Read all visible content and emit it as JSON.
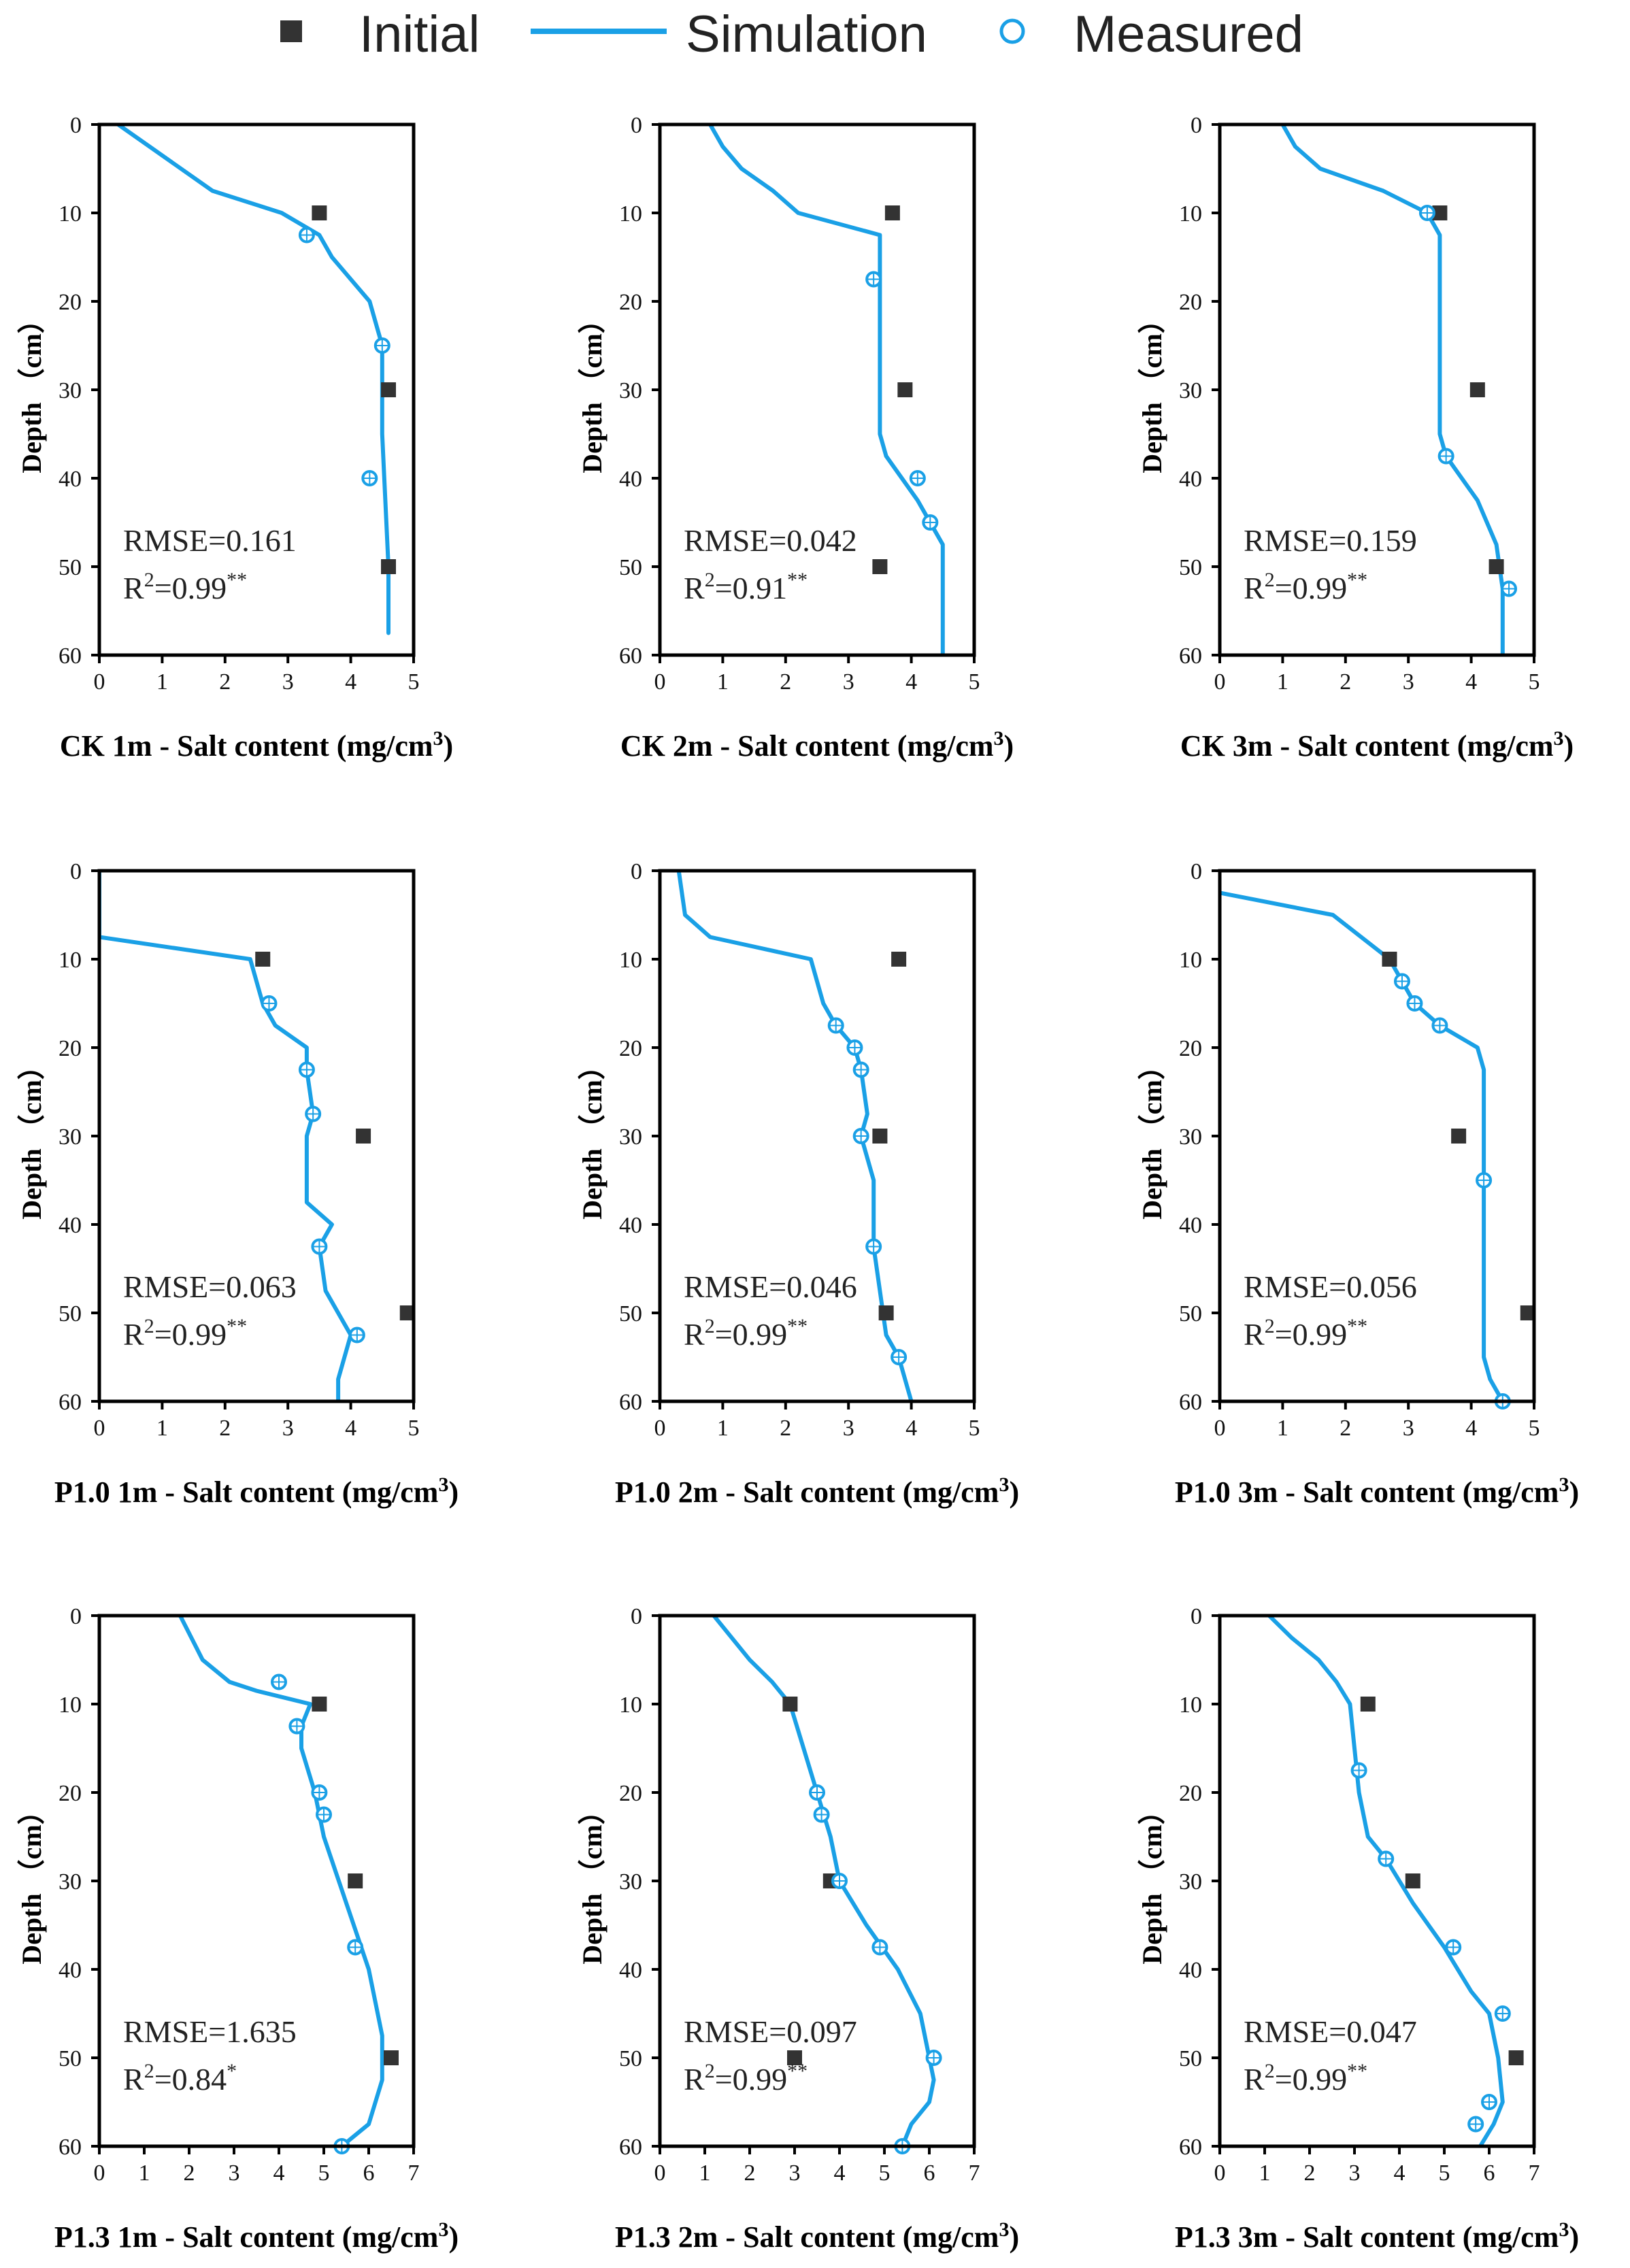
{
  "legend": {
    "initial": "Initial",
    "simulation": "Simulation",
    "measured": "Measured"
  },
  "colors": {
    "simulation": "#1aa0e6",
    "measured": "#1aa0e6",
    "initial": "#333333",
    "axis": "#000000"
  },
  "chart_data": [
    {
      "type": "line",
      "panel": "CK 1m",
      "xlabel": "CK 1m - Salt content (mg/cm",
      "xlabel_sup": "3",
      "xlabel_end": ")",
      "ylabel": "Depth （cm）",
      "xlim": [
        0,
        5
      ],
      "xticks": [
        0,
        1,
        2,
        3,
        4,
        5
      ],
      "ylim": [
        0,
        60
      ],
      "yticks": [
        0,
        10,
        20,
        30,
        40,
        50,
        60
      ],
      "rmse": "RMSE=0.161",
      "r2": "R",
      "r2_sup1": "2",
      "r2_val": "=0.99",
      "r2_sup2": "**",
      "simulation": {
        "x": [
          0.3,
          0.8,
          1.8,
          2.9,
          3.5,
          3.7,
          4.3,
          4.5,
          4.5,
          4.6,
          4.6
        ],
        "y": [
          0,
          2.5,
          7.5,
          10,
          12.5,
          15,
          20,
          25,
          35,
          50,
          57.5
        ]
      },
      "measured": {
        "x": [
          3.3,
          4.5,
          4.3
        ],
        "y": [
          12.5,
          25,
          40
        ]
      },
      "initial": {
        "x": [
          3.5,
          4.6,
          4.6
        ],
        "y": [
          10,
          30,
          50
        ]
      }
    },
    {
      "type": "line",
      "panel": "CK 2m",
      "xlabel": "CK 2m - Salt content (mg/cm",
      "xlabel_sup": "3",
      "xlabel_end": ")",
      "ylabel": "Depth （cm）",
      "xlim": [
        0,
        5
      ],
      "xticks": [
        0,
        1,
        2,
        3,
        4,
        5
      ],
      "ylim": [
        0,
        60
      ],
      "yticks": [
        0,
        10,
        20,
        30,
        40,
        50,
        60
      ],
      "rmse": "RMSE=0.042",
      "r2": "R",
      "r2_sup1": "2",
      "r2_val": "=0.91",
      "r2_sup2": "**",
      "simulation": {
        "x": [
          0.8,
          1.0,
          1.3,
          1.8,
          2.2,
          3.5,
          3.5,
          3.5,
          3.6,
          4.1,
          4.5,
          4.5,
          4.5
        ],
        "y": [
          0,
          2.5,
          5,
          7.5,
          10,
          12.5,
          20,
          35,
          37.5,
          42.5,
          47.5,
          52.5,
          60
        ]
      },
      "measured": {
        "x": [
          3.4,
          4.1,
          4.3
        ],
        "y": [
          17.5,
          40,
          45
        ]
      },
      "initial": {
        "x": [
          3.7,
          3.9,
          3.5
        ],
        "y": [
          10,
          30,
          50
        ]
      }
    },
    {
      "type": "line",
      "panel": "CK 3m",
      "xlabel": "CK 3m - Salt content (mg/cm",
      "xlabel_sup": "3",
      "xlabel_end": ")",
      "ylabel": "Depth （cm）",
      "xlim": [
        0,
        5
      ],
      "xticks": [
        0,
        1,
        2,
        3,
        4,
        5
      ],
      "ylim": [
        0,
        60
      ],
      "yticks": [
        0,
        10,
        20,
        30,
        40,
        50,
        60
      ],
      "rmse": "RMSE=0.159",
      "r2": "R",
      "r2_sup1": "2",
      "r2_val": "=0.99",
      "r2_sup2": "**",
      "simulation": {
        "x": [
          1.0,
          1.2,
          1.6,
          2.6,
          3.3,
          3.5,
          3.5,
          3.5,
          3.6,
          4.1,
          4.4,
          4.5,
          4.5
        ],
        "y": [
          0,
          2.5,
          5,
          7.5,
          10,
          12.5,
          20,
          35,
          37.5,
          42.5,
          47.5,
          52.5,
          60
        ]
      },
      "measured": {
        "x": [
          3.3,
          3.6,
          4.6
        ],
        "y": [
          10,
          37.5,
          52.5
        ]
      },
      "initial": {
        "x": [
          3.5,
          4.1,
          4.4
        ],
        "y": [
          10,
          30,
          50
        ]
      }
    },
    {
      "type": "line",
      "panel": "P1.0 1m",
      "xlabel": "P1.0 1m - Salt content (mg/cm",
      "xlabel_sup": "3",
      "xlabel_end": ")",
      "ylabel": "Depth （cm）",
      "xlim": [
        0,
        5
      ],
      "xticks": [
        0,
        1,
        2,
        3,
        4,
        5
      ],
      "ylim": [
        0,
        60
      ],
      "yticks": [
        0,
        10,
        20,
        30,
        40,
        50,
        60
      ],
      "rmse": "RMSE=0.063",
      "r2": "R",
      "r2_sup1": "2",
      "r2_val": "=0.99",
      "r2_sup2": "**",
      "simulation": {
        "x": [
          0,
          0,
          2.4,
          2.6,
          2.8,
          3.3,
          3.3,
          3.4,
          3.3,
          3.3,
          3.7,
          3.5,
          3.6,
          4.0,
          3.8,
          3.8
        ],
        "y": [
          0,
          7.5,
          10,
          15,
          17.5,
          20,
          22.5,
          27.5,
          30,
          37.5,
          40,
          42.5,
          47.5,
          52.5,
          57.5,
          60
        ]
      },
      "measured": {
        "x": [
          2.7,
          3.3,
          3.4,
          3.5,
          4.1
        ],
        "y": [
          15,
          22.5,
          27.5,
          42.5,
          52.5
        ]
      },
      "initial": {
        "x": [
          2.6,
          4.2,
          4.9
        ],
        "y": [
          10,
          30,
          50
        ]
      }
    },
    {
      "type": "line",
      "panel": "P1.0 2m",
      "xlabel": "P1.0 2m - Salt content (mg/cm",
      "xlabel_sup": "3",
      "xlabel_end": ")",
      "ylabel": "Depth （cm）",
      "xlim": [
        0,
        5
      ],
      "xticks": [
        0,
        1,
        2,
        3,
        4,
        5
      ],
      "ylim": [
        0,
        60
      ],
      "yticks": [
        0,
        10,
        20,
        30,
        40,
        50,
        60
      ],
      "rmse": "RMSE=0.046",
      "r2": "R",
      "r2_sup1": "2",
      "r2_val": "=0.99",
      "r2_sup2": "**",
      "simulation": {
        "x": [
          0.3,
          0.4,
          0.8,
          2.4,
          2.6,
          2.8,
          3.1,
          3.2,
          3.3,
          3.2,
          3.4,
          3.4,
          3.5,
          3.6,
          3.8,
          4.0
        ],
        "y": [
          0,
          5,
          7.5,
          10,
          15,
          17.5,
          20,
          22.5,
          27.5,
          30,
          35,
          42.5,
          47.5,
          52.5,
          55,
          60
        ]
      },
      "measured": {
        "x": [
          2.8,
          3.1,
          3.2,
          3.2,
          3.4,
          3.8
        ],
        "y": [
          17.5,
          20,
          22.5,
          30,
          42.5,
          55
        ]
      },
      "initial": {
        "x": [
          3.8,
          3.5,
          3.6
        ],
        "y": [
          10,
          30,
          50
        ]
      }
    },
    {
      "type": "line",
      "panel": "P1.0 3m",
      "xlabel": "P1.0 3m - Salt content (mg/cm",
      "xlabel_sup": "3",
      "xlabel_end": ")",
      "ylabel": "Depth （cm）",
      "xlim": [
        0,
        5
      ],
      "xticks": [
        0,
        1,
        2,
        3,
        4,
        5
      ],
      "ylim": [
        0,
        60
      ],
      "yticks": [
        0,
        10,
        20,
        30,
        40,
        50,
        60
      ],
      "rmse": "RMSE=0.056",
      "r2": "R",
      "r2_sup1": "2",
      "r2_val": "=0.99",
      "r2_sup2": "**",
      "simulation": {
        "x": [
          0,
          1.8,
          2.7,
          2.9,
          3.1,
          3.5,
          4.1,
          4.2,
          4.2,
          4.2,
          4.2,
          4.3,
          4.5
        ],
        "y": [
          2.5,
          5,
          10,
          12.5,
          15,
          17.5,
          20,
          22.5,
          35,
          50,
          55,
          57.5,
          60
        ]
      },
      "measured": {
        "x": [
          2.9,
          3.1,
          3.5,
          4.2,
          4.5
        ],
        "y": [
          12.5,
          15,
          17.5,
          35,
          60
        ]
      },
      "initial": {
        "x": [
          2.7,
          3.8,
          4.9
        ],
        "y": [
          10,
          30,
          50
        ]
      }
    },
    {
      "type": "line",
      "panel": "P1.3 1m",
      "xlabel": "P1.3 1m - Salt content (mg/cm",
      "xlabel_sup": "3",
      "xlabel_end": ")",
      "ylabel": "Depth （cm）",
      "xlim": [
        0,
        7
      ],
      "xticks": [
        0,
        1,
        2,
        3,
        4,
        5,
        6,
        7
      ],
      "ylim": [
        0,
        60
      ],
      "yticks": [
        0,
        10,
        20,
        30,
        40,
        50,
        60
      ],
      "rmse": "RMSE=1.635",
      "r2": "R",
      "r2_sup1": "2",
      "r2_val": "=0.84",
      "r2_sup2": "*",
      "simulation": {
        "x": [
          1.8,
          2.3,
          2.9,
          3.5,
          4.7,
          4.5,
          4.5,
          4.8,
          5.0,
          5.5,
          6.0,
          6.3,
          6.3,
          6.0,
          5.4
        ],
        "y": [
          0,
          5,
          7.5,
          8.5,
          10,
          12.5,
          15,
          20,
          25,
          32.5,
          40,
          47.5,
          52.5,
          57.5,
          60
        ]
      },
      "measured": {
        "x": [
          4.0,
          4.4,
          4.9,
          5.0,
          5.7,
          5.4
        ],
        "y": [
          7.5,
          12.5,
          20,
          22.5,
          37.5,
          60
        ]
      },
      "initial": {
        "x": [
          4.9,
          5.7,
          6.5
        ],
        "y": [
          10,
          30,
          50
        ]
      }
    },
    {
      "type": "line",
      "panel": "P1.3 2m",
      "xlabel": "P1.3 2m - Salt content (mg/cm",
      "xlabel_sup": "3",
      "xlabel_end": ")",
      "ylabel": "Depth （cm）",
      "xlim": [
        0,
        7
      ],
      "xticks": [
        0,
        1,
        2,
        3,
        4,
        5,
        6,
        7
      ],
      "ylim": [
        0,
        60
      ],
      "yticks": [
        0,
        10,
        20,
        30,
        40,
        50,
        60
      ],
      "rmse": "RMSE=0.097",
      "r2": "R",
      "r2_sup1": "2",
      "r2_val": "=0.99",
      "r2_sup2": "**",
      "simulation": {
        "x": [
          1.2,
          1.6,
          2.0,
          2.5,
          2.9,
          3.2,
          3.5,
          3.8,
          4.0,
          4.6,
          5.3,
          5.8,
          6.0,
          6.1,
          6.0,
          5.6,
          5.4
        ],
        "y": [
          0,
          2.5,
          5,
          7.5,
          10,
          15,
          20,
          25,
          30,
          35,
          40,
          45,
          50,
          52.5,
          55,
          57.5,
          60
        ]
      },
      "measured": {
        "x": [
          3.5,
          3.6,
          4.0,
          4.9,
          6.1,
          5.4
        ],
        "y": [
          20,
          22.5,
          30,
          37.5,
          50,
          60
        ]
      },
      "initial": {
        "x": [
          2.9,
          3.8,
          3.0
        ],
        "y": [
          10,
          30,
          50
        ]
      }
    },
    {
      "type": "line",
      "panel": "P1.3 3m",
      "xlabel": "P1.3 3m - Salt content (mg/cm",
      "xlabel_sup": "3",
      "xlabel_end": ")",
      "ylabel": "Depth （cm）",
      "xlim": [
        0,
        7
      ],
      "xticks": [
        0,
        1,
        2,
        3,
        4,
        5,
        6,
        7
      ],
      "ylim": [
        0,
        60
      ],
      "yticks": [
        0,
        10,
        20,
        30,
        40,
        50,
        60
      ],
      "rmse": "RMSE=0.047",
      "r2": "R",
      "r2_sup1": "2",
      "r2_val": "=0.99",
      "r2_sup2": "**",
      "simulation": {
        "x": [
          1.1,
          1.6,
          2.2,
          2.6,
          2.9,
          3.0,
          3.1,
          3.3,
          3.7,
          4.3,
          5.0,
          5.6,
          6.0,
          6.2,
          6.3,
          6.1,
          5.8
        ],
        "y": [
          0,
          2.5,
          5,
          7.5,
          10,
          15,
          20,
          25,
          27.5,
          32.5,
          37.5,
          42.5,
          45,
          50,
          55,
          57.5,
          60
        ]
      },
      "measured": {
        "x": [
          3.1,
          3.7,
          5.2,
          6.3,
          6.0,
          5.7
        ],
        "y": [
          17.5,
          27.5,
          37.5,
          45,
          55,
          57.5
        ]
      },
      "initial": {
        "x": [
          3.3,
          4.3,
          6.6
        ],
        "y": [
          10,
          30,
          50
        ]
      }
    }
  ]
}
